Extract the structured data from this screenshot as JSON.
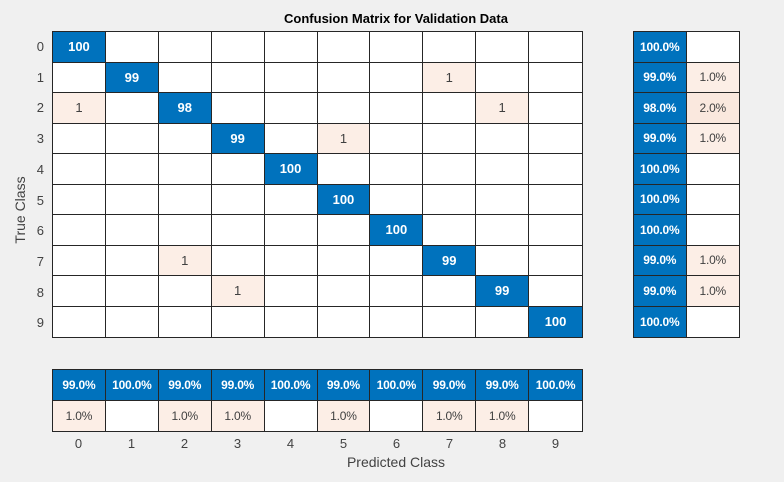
{
  "chart_data": {
    "type": "heatmap",
    "subtype": "confusion_matrix",
    "title": "Confusion Matrix for Validation Data",
    "xlabel": "Predicted Class",
    "ylabel": "True Class",
    "classes": [
      "0",
      "1",
      "2",
      "3",
      "4",
      "5",
      "6",
      "7",
      "8",
      "9"
    ],
    "matrix": [
      [
        100,
        0,
        0,
        0,
        0,
        0,
        0,
        0,
        0,
        0
      ],
      [
        0,
        99,
        0,
        0,
        0,
        0,
        0,
        1,
        0,
        0
      ],
      [
        1,
        0,
        98,
        0,
        0,
        0,
        0,
        0,
        1,
        0
      ],
      [
        0,
        0,
        0,
        99,
        0,
        1,
        0,
        0,
        0,
        0
      ],
      [
        0,
        0,
        0,
        0,
        100,
        0,
        0,
        0,
        0,
        0
      ],
      [
        0,
        0,
        0,
        0,
        0,
        100,
        0,
        0,
        0,
        0
      ],
      [
        0,
        0,
        0,
        0,
        0,
        0,
        100,
        0,
        0,
        0
      ],
      [
        0,
        0,
        1,
        0,
        0,
        0,
        0,
        99,
        0,
        0
      ],
      [
        0,
        0,
        0,
        1,
        0,
        0,
        0,
        0,
        99,
        0
      ],
      [
        0,
        0,
        0,
        0,
        0,
        0,
        0,
        0,
        0,
        100
      ]
    ],
    "row_summary": {
      "correct": [
        "100.0%",
        "99.0%",
        "98.0%",
        "99.0%",
        "100.0%",
        "100.0%",
        "100.0%",
        "99.0%",
        "99.0%",
        "100.0%"
      ],
      "incorrect": [
        "",
        "1.0%",
        "2.0%",
        "1.0%",
        "",
        "",
        "",
        "1.0%",
        "1.0%",
        ""
      ]
    },
    "column_summary": {
      "correct": [
        "99.0%",
        "100.0%",
        "99.0%",
        "99.0%",
        "100.0%",
        "99.0%",
        "100.0%",
        "99.0%",
        "99.0%",
        "100.0%"
      ],
      "incorrect": [
        "1.0%",
        "",
        "1.0%",
        "1.0%",
        "",
        "1.0%",
        "",
        "1.0%",
        "1.0%",
        ""
      ]
    },
    "colors": {
      "diagonal": "#0072BD",
      "off_diagonal_tint_1pct": "#FCEEE6",
      "off_diagonal_tint_2pct": "#FAE8DE",
      "empty_cell": "#FFFFFF",
      "grid_line": "#262626",
      "background": "#F0F0F0",
      "cell_text_light": "#FFFFFF",
      "cell_text_dark": "#404040",
      "axis_text": "#424242",
      "title_text": "#000000"
    },
    "layout": {
      "grid_lines": "on",
      "row_summary_position": "right",
      "column_summary_position": "bottom"
    }
  }
}
